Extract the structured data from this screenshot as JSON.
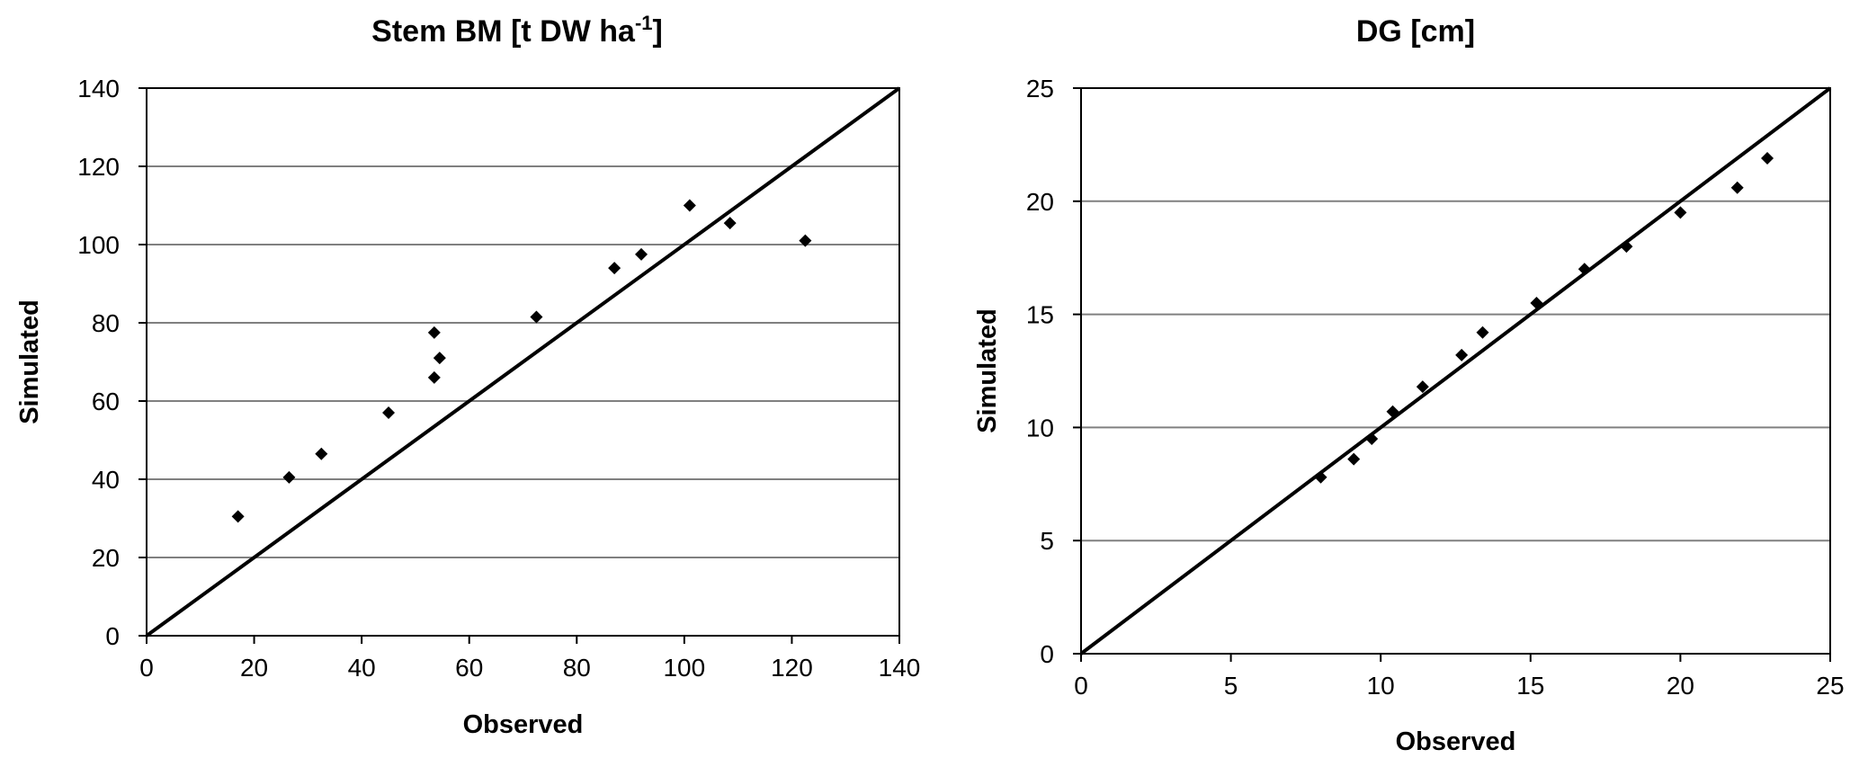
{
  "chart_data": [
    {
      "type": "scatter",
      "title": "Stem BM [t DW ha",
      "title_superscript": "-1",
      "title_suffix": "]",
      "xlabel": "Observed",
      "ylabel": "Simulated",
      "xlim": [
        0,
        140
      ],
      "ylim": [
        0,
        140
      ],
      "xticks": [
        0,
        20,
        40,
        60,
        80,
        100,
        120,
        140
      ],
      "yticks": [
        0,
        20,
        40,
        60,
        80,
        100,
        120,
        140
      ],
      "grid": "horizontal",
      "reference_line": "1:1",
      "points": [
        {
          "x": 17,
          "y": 30.5
        },
        {
          "x": 26.5,
          "y": 40.5
        },
        {
          "x": 32.5,
          "y": 46.5
        },
        {
          "x": 45,
          "y": 57
        },
        {
          "x": 53.5,
          "y": 77.5
        },
        {
          "x": 54.5,
          "y": 71
        },
        {
          "x": 53.5,
          "y": 66
        },
        {
          "x": 72.5,
          "y": 81.5
        },
        {
          "x": 87,
          "y": 94
        },
        {
          "x": 92,
          "y": 97.5
        },
        {
          "x": 101,
          "y": 110
        },
        {
          "x": 108.5,
          "y": 105.5
        },
        {
          "x": 122.5,
          "y": 101
        }
      ]
    },
    {
      "type": "scatter",
      "title": "DG [cm]",
      "xlabel": "Observed",
      "ylabel": "Simulated",
      "xlim": [
        0,
        25
      ],
      "ylim": [
        0,
        25
      ],
      "xticks": [
        0,
        5,
        10,
        15,
        20,
        25
      ],
      "yticks": [
        0,
        5,
        10,
        15,
        20,
        25
      ],
      "grid": "horizontal",
      "reference_line": "1:1",
      "points": [
        {
          "x": 8.0,
          "y": 7.8
        },
        {
          "x": 9.1,
          "y": 8.6
        },
        {
          "x": 9.7,
          "y": 9.5
        },
        {
          "x": 10.4,
          "y": 10.7
        },
        {
          "x": 11.4,
          "y": 11.8
        },
        {
          "x": 12.7,
          "y": 13.2
        },
        {
          "x": 13.4,
          "y": 14.2
        },
        {
          "x": 15.2,
          "y": 15.5
        },
        {
          "x": 16.8,
          "y": 17.0
        },
        {
          "x": 18.2,
          "y": 18.0
        },
        {
          "x": 20.0,
          "y": 19.5
        },
        {
          "x": 21.9,
          "y": 20.6
        },
        {
          "x": 22.9,
          "y": 21.9
        }
      ]
    }
  ]
}
